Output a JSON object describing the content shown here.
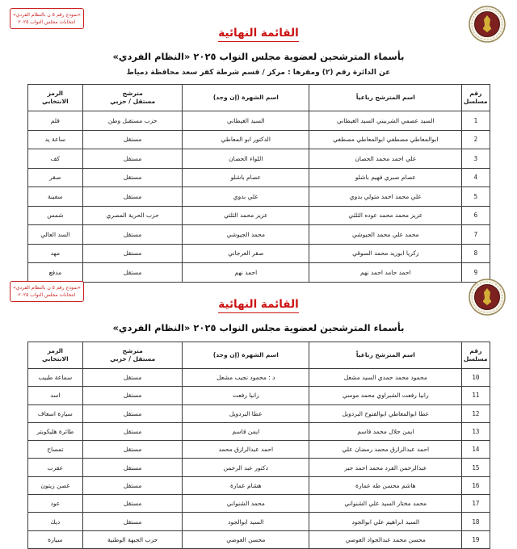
{
  "colors": {
    "title_red": "#cc1111",
    "border_dark": "#3c3c3c",
    "emblem_gold": "#c9a227",
    "emblem_maroon": "#7c2020"
  },
  "corner_note": {
    "line1": "«نموذج رقم ٥ ن بالنظام الفردي»",
    "line2": "انتخابات مجلس النواب ٢٠٢٥"
  },
  "emblem_name": "egypt-eagle-seal",
  "header": {
    "title": "القائمة النهائية",
    "subtitle": "بأسماء المترشحين لعضوية مجلس النواب ٢٠٢٥ «النظام الفردي»",
    "district_line": "عن الدائرة رقم (٢)    ومقرها : مركز / قسم شرطة كفر سعد    محافظة دمياط"
  },
  "table_headers": {
    "serial": "رقم\nمسلسل",
    "name": "اسم المترشح رباعياً",
    "shohra": "اسم الشهرة (إن وجد)",
    "status": "مترشح\nمستقل / حزبي",
    "symbol": "الرمز\nالانتخابي"
  },
  "pages": [
    {
      "rows": [
        {
          "no": "1",
          "name": "السيد عصمي الشربيني السيد الغيطاني",
          "shohra": "السيد الغيطاني",
          "status": "حزب مستقبل وطن",
          "symbol": "قلم"
        },
        {
          "no": "2",
          "name": "ابوالمعاطي مصطفي ابوالمعاطي مصطفي",
          "shohra": "الدكتور ابو المعاطي",
          "status": "مستقل",
          "symbol": "ساعة يد"
        },
        {
          "no": "3",
          "name": "علي احمد محمد الحصان",
          "shohra": "اللواء الحصان",
          "status": "مستقل",
          "symbol": "كف"
        },
        {
          "no": "4",
          "name": "عصام صبري فهيم باشلو",
          "shohra": "عصام باشلو",
          "status": "مستقل",
          "symbol": "صقر"
        },
        {
          "no": "5",
          "name": "علي محمد احمد متولي بدوي",
          "shohra": "علي بدوي",
          "status": "مستقل",
          "symbol": "سفينة"
        },
        {
          "no": "6",
          "name": "عزيز محمد محمد عوده الثلثي",
          "shohra": "عزيز محمد الثلثي",
          "status": "حزب الحرية المصري",
          "symbol": "شمس"
        },
        {
          "no": "7",
          "name": "محمد علي محمد الجيوشي",
          "shohra": "محمد الجيوشي",
          "status": "مستقل",
          "symbol": "السد العالي"
        },
        {
          "no": "8",
          "name": "زكريا ابوزيد محمد السوقي",
          "shohra": "صقر العرجاني",
          "status": "مستقل",
          "symbol": "مهد"
        },
        {
          "no": "9",
          "name": "احمد حامد احمد نهم",
          "shohra": "احمد نهم",
          "status": "مستقل",
          "symbol": "مدفع"
        }
      ]
    },
    {
      "rows": [
        {
          "no": "10",
          "name": "محمود محمد حمدي السيد مشعل",
          "shohra": "د : محمود نجيب مشعل",
          "status": "مستقل",
          "symbol": "سماعة طبيب"
        },
        {
          "no": "11",
          "name": "رانيا رفعت الشبراوي محمد موسي",
          "shohra": "رانيا رفعت",
          "status": "مستقل",
          "symbol": "اسد"
        },
        {
          "no": "12",
          "name": "عطا ابوالمعاطي ابوالفتوح البردويل",
          "shohra": "عطا البردويل",
          "status": "مستقل",
          "symbol": "سيارة اسعاف"
        },
        {
          "no": "13",
          "name": "ايمن جلال محمد قاسم",
          "shohra": "ايمن قاسم",
          "status": "مستقل",
          "symbol": "طائرة هليكوبتر"
        },
        {
          "no": "14",
          "name": "احمد عبدالرازق محمد رمضان علي",
          "shohra": "احمد عبدالرازق محمد",
          "status": "مستقل",
          "symbol": "تمساح"
        },
        {
          "no": "15",
          "name": "عبدالرحمن الفرد محمد احمد جبر",
          "shohra": "دكتور عبد الرحمن",
          "status": "مستقل",
          "symbol": "عقرب"
        },
        {
          "no": "16",
          "name": "هاشم محسن طه عمارة",
          "shohra": "هشام عمارة",
          "status": "مستقل",
          "symbol": "غصن زيتون"
        },
        {
          "no": "17",
          "name": "محمد مختار السيد علي الشنواني",
          "shohra": "محمد الشنواني",
          "status": "مستقل",
          "symbol": "عود"
        },
        {
          "no": "18",
          "name": "السيد ابراهيم علي ابوالجود",
          "shohra": "السيد ابوالجود",
          "status": "مستقل",
          "symbol": "ديك"
        },
        {
          "no": "19",
          "name": "محسن محمد عبدالجواد العوضي",
          "shohra": "محسن العوضي",
          "status": "حزب الجبهة الوطنية",
          "symbol": "سيارة"
        }
      ]
    }
  ]
}
